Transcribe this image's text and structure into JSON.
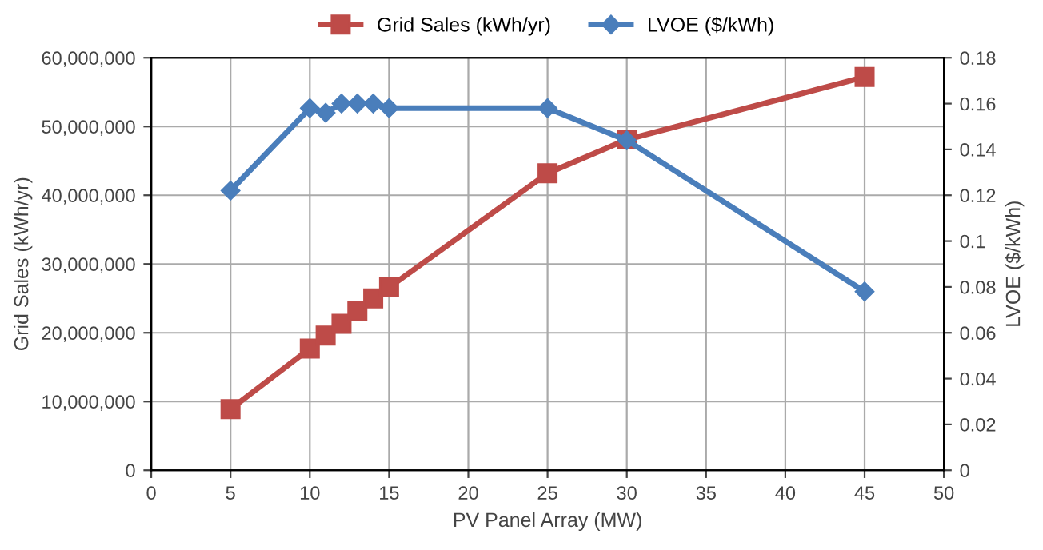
{
  "chart_data": {
    "type": "line",
    "xlabel": "PV Panel Array (MW)",
    "ylabel": "Grid Sales (kWh/yr)",
    "y2label": "LVOE ($/kWh)",
    "series": [
      {
        "name": "Grid Sales (kWh/yr)",
        "color": "#be4b48",
        "marker": "square",
        "x": [
          5,
          10,
          11,
          12,
          13,
          14,
          15,
          25,
          30,
          45
        ],
        "values": [
          8900000,
          17700000,
          19600000,
          21300000,
          23100000,
          25000000,
          26600000,
          43200000,
          48100000,
          57200000
        ]
      },
      {
        "name": "LVOE ($/kWh)",
        "color": "#4a7ebb",
        "marker": "diamond",
        "axis": "y2",
        "x": [
          5,
          10,
          11,
          12,
          13,
          14,
          15,
          25,
          30,
          45
        ],
        "values": [
          0.122,
          0.158,
          0.156,
          0.16,
          0.16,
          0.16,
          0.158,
          0.158,
          0.144,
          0.078
        ]
      }
    ],
    "xlim": [
      0,
      50
    ],
    "xticks": [
      0,
      5,
      10,
      15,
      20,
      25,
      30,
      35,
      40,
      45,
      50
    ],
    "ylim": [
      0,
      60000000
    ],
    "yticks": [
      {
        "value": 0,
        "label": "0"
      },
      {
        "value": 10000000,
        "label": "10,000,000"
      },
      {
        "value": 20000000,
        "label": "20,000,000"
      },
      {
        "value": 30000000,
        "label": "30,000,000"
      },
      {
        "value": 40000000,
        "label": "40,000,000"
      },
      {
        "value": 50000000,
        "label": "50,000,000"
      },
      {
        "value": 60000000,
        "label": "60,000,000"
      }
    ],
    "y2lim": [
      0,
      0.18
    ],
    "y2ticks": [
      0,
      0.02,
      0.04,
      0.06,
      0.08,
      0.1,
      0.12,
      0.14,
      0.16,
      0.18
    ],
    "grid": true,
    "legend": "top",
    "line_style": "solid"
  }
}
